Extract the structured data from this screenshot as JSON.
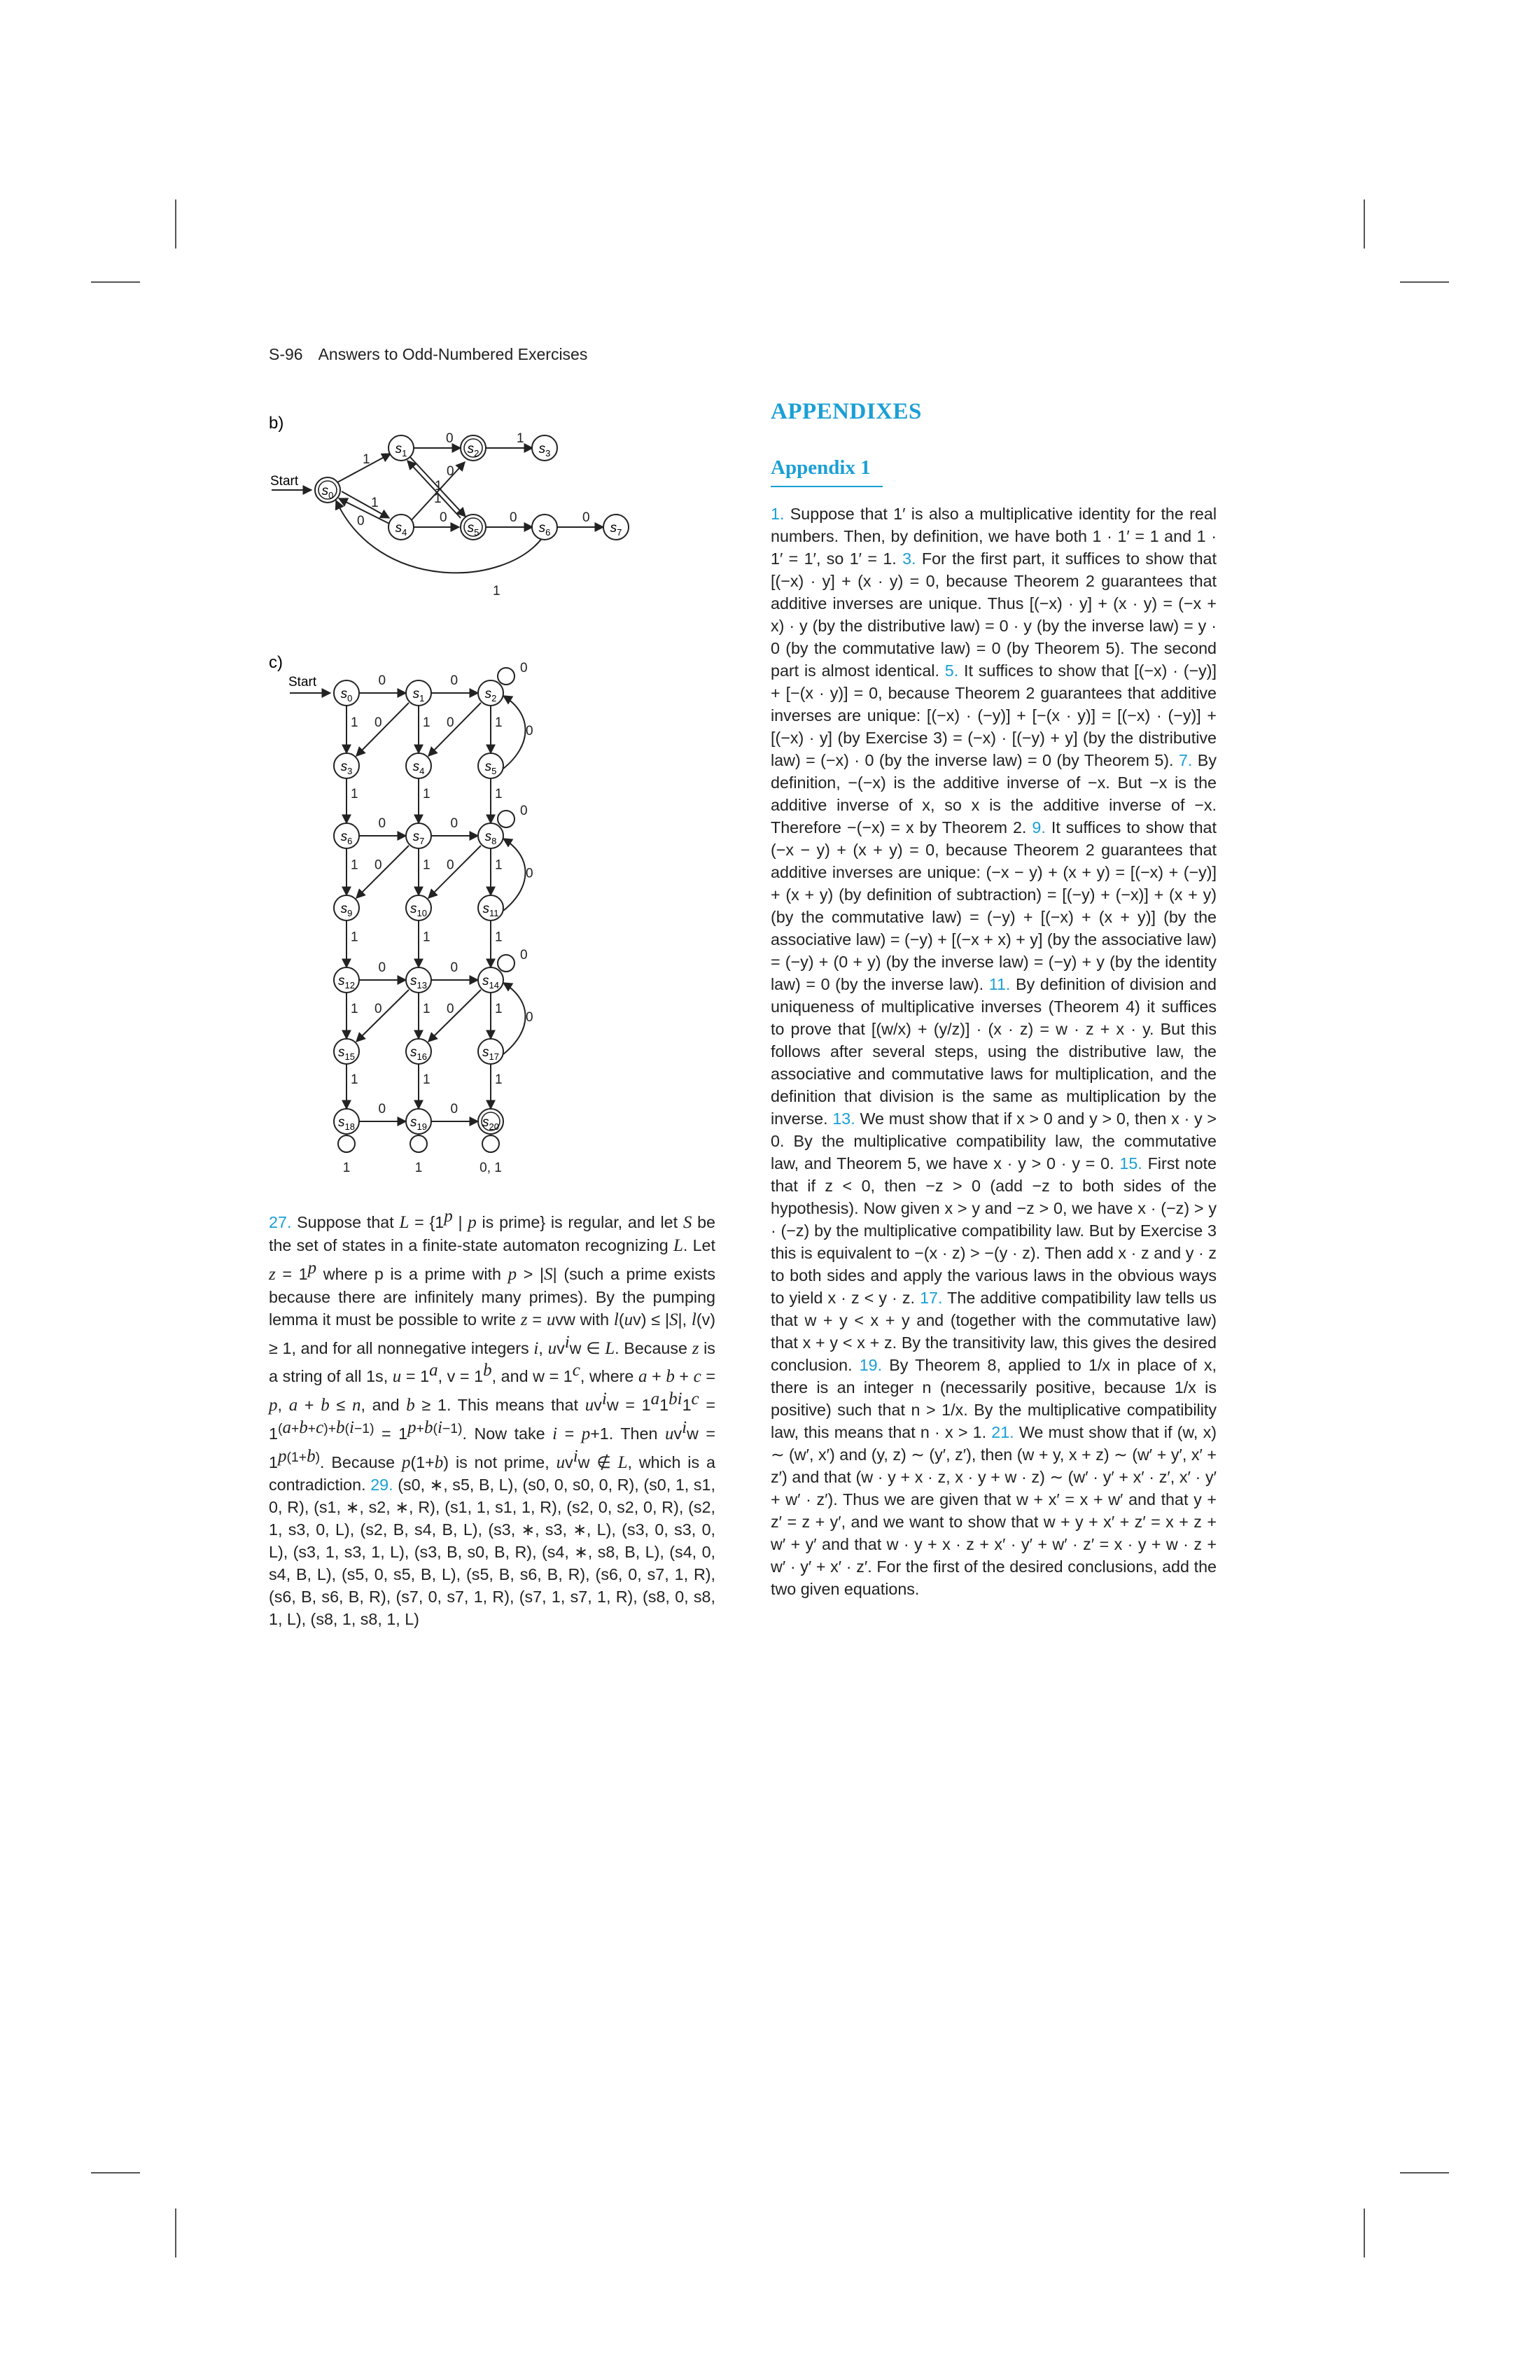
{
  "header": {
    "page_number": "S-96",
    "running_title": "Answers to Odd-Numbered Exercises"
  },
  "figure_b": {
    "label": "b)",
    "start_label": "Start",
    "states": [
      "s0",
      "s1",
      "s2",
      "s3",
      "s4",
      "s5",
      "s6",
      "s7"
    ],
    "final_states": [
      "s0",
      "s2",
      "s5"
    ],
    "edge_labels": [
      "1",
      "0",
      "1",
      "0",
      "1",
      "1",
      "0",
      "0",
      "0",
      "1",
      "0",
      "1",
      "0"
    ]
  },
  "figure_c": {
    "label": "c)",
    "start_label": "Start",
    "states": [
      "s0",
      "s1",
      "s2",
      "s3",
      "s4",
      "s5",
      "s6",
      "s7",
      "s8",
      "s9",
      "s10",
      "s11",
      "s12",
      "s13",
      "s14",
      "s15",
      "s16",
      "s17",
      "s18",
      "s19",
      "s20"
    ],
    "final_states": [
      "s20"
    ],
    "loop_labels": [
      "1",
      "1",
      "0, 1"
    ]
  },
  "appendix": {
    "heading": "APPENDIXES",
    "subheading": "Appendix 1"
  },
  "left_column": {
    "n27": "27.",
    "n29": "29.",
    "t27": [
      "Suppose that ",
      " is regular, and let ",
      " be the set of states in a finite-state automaton recognizing ",
      ". Let ",
      " where p is a prime with ",
      " (such a prime exists because there are infinitely many primes). By the pumping lemma it must be possible to write ",
      ", and for all nonnegative integers ",
      ". Because ",
      " is a string of all 1s, ",
      ", and ",
      ", where ",
      ". This means that ",
      ". Now take ",
      ". Then ",
      ". Because ",
      " is not prime, ",
      ", which is a contradiction."
    ],
    "t29": "(s0, ∗, s5, B, L), (s0, 0, s0, 0, R), (s0, 1, s1, 0, R), (s1, ∗, s2, ∗, R), (s1, 1, s1, 1, R), (s2, 0, s2, 0, R), (s2, 1, s3, 0, L), (s2, B, s4, B, L), (s3, ∗, s3, ∗, L), (s3, 0, s3, 0, L), (s3, 1, s3, 1, L), (s3, B, s0, B, R), (s4, ∗, s8, B, L), (s4, 0, s4, B, L), (s5, 0, s5, B, L), (s5, B, s6, B, R), (s6, 0, s7, 1, R), (s6, B, s6, B, R), (s7, 0, s7, 1, R), (s7, 1, s7, 1, R), (s8, 0, s8, 1, L), (s8, 1, s8, 1, L)"
  },
  "right_column": {
    "nums": [
      "1.",
      "3.",
      "5.",
      "7.",
      "9.",
      "11.",
      "13.",
      "15.",
      "17.",
      "19.",
      "21."
    ],
    "a1": "Suppose that 1′ is also a multiplicative identity for the real numbers. Then, by definition, we have both 1 · 1′ = 1 and 1 · 1′ = 1′, so 1′ = 1.",
    "a3": "For the first part, it suffices to show that [(−x) · y] + (x · y) = 0, because Theorem 2 guarantees that additive inverses are unique. Thus [(−x) · y] + (x · y) = (−x + x) · y (by the distributive law) = 0 · y (by the inverse law) = y · 0 (by the commutative law) = 0 (by Theorem 5). The second part is almost identical.",
    "a5": "It suffices to show that [(−x) · (−y)] + [−(x · y)] = 0, because Theorem 2 guarantees that additive inverses are unique: [(−x) · (−y)] + [−(x · y)] = [(−x) · (−y)] + [(−x) · y] (by Exercise 3) = (−x) · [(−y) + y] (by the distributive law) = (−x) · 0 (by the inverse law) = 0 (by Theorem 5).",
    "a7": "By definition, −(−x) is the additive inverse of −x. But −x is the additive inverse of x, so x is the additive inverse of −x. Therefore −(−x) = x by Theorem 2.",
    "a9": "It suffices to show that (−x − y) + (x + y) = 0, because Theorem 2 guarantees that additive inverses are unique: (−x − y) + (x + y) = [(−x) + (−y)] + (x + y) (by definition of subtraction) = [(−y) + (−x)] + (x + y) (by the commutative law) = (−y) + [(−x) + (x + y)] (by the associative law) = (−y) + [(−x + x) + y] (by the associative law) = (−y) + (0 + y) (by the inverse law) = (−y) + y (by the identity law) = 0 (by the inverse law).",
    "a11": "By definition of division and uniqueness of multiplicative inverses (Theorem 4) it suffices to prove that [(w/x) + (y/z)] · (x · z) = w · z + x · y. But this follows after several steps, using the distributive law, the associative and commutative laws for multiplication, and the definition that division is the same as multiplication by the inverse.",
    "a13": "We must show that if x > 0 and y > 0, then x · y > 0. By the multiplicative compatibility law, the commutative law, and Theorem 5, we have x · y > 0 · y = 0.",
    "a15": "First note that if z < 0, then −z > 0 (add −z to both sides of the hypothesis). Now given x > y and −z > 0, we have x · (−z) > y · (−z) by the multiplicative compatibility law. But by Exercise 3 this is equivalent to −(x · z) > −(y · z). Then add x · z and y · z to both sides and apply the various laws in the obvious ways to yield x · z < y · z.",
    "a17": "The additive compatibility law tells us that w + y < x + y and (together with the commutative law) that x + y < x + z. By the transitivity law, this gives the desired conclusion.",
    "a19": "By Theorem 8, applied to 1/x in place of x, there is an integer n (necessarily positive, because 1/x is positive) such that n > 1/x. By the multiplicative compatibility law, this means that n · x > 1.",
    "a21": "We must show that if (w, x) ∼ (w′, x′) and (y, z) ∼ (y′, z′), then (w + y, x + z) ∼ (w′ + y′, x′ + z′) and that (w · y + x · z, x · y + w · z) ∼ (w′ · y′ + x′ · z′, x′ · y′ + w′ · z′). Thus we are given that w + x′ = x + w′ and that y + z′ = z + y′, and we want to show that w + y + x′ + z′ = x + z + w′ + y′ and that w · y + x · z + x′ · y′ + w′ · z′ = x · y + w · z + w′ · y′ + x′ · z′. For the first of the desired conclusions, add the two given equations."
  }
}
